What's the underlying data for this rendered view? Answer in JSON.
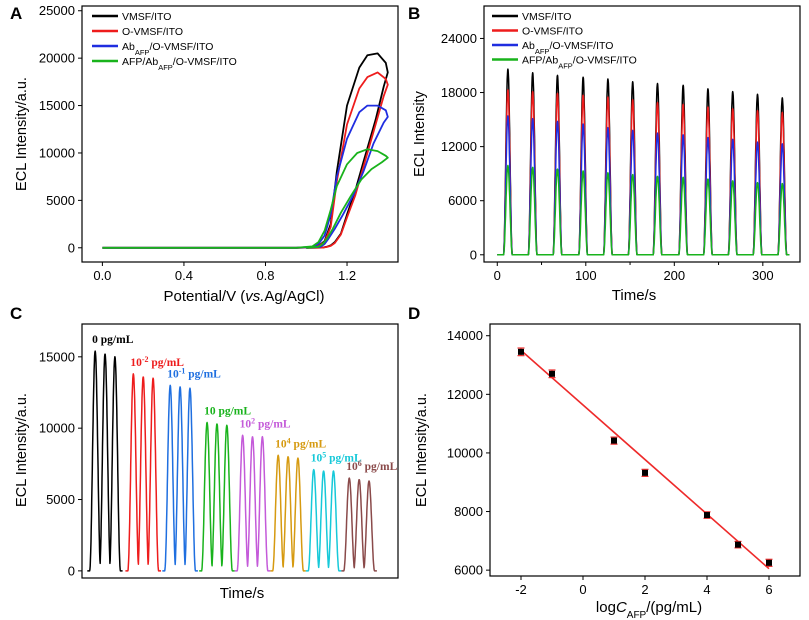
{
  "colors": {
    "black": "#000000",
    "red": "#ee1c1c",
    "blue": "#1f2de0",
    "green": "#19b31c",
    "fit": "#ee2a2a"
  },
  "chart_data": [
    {
      "panel": "A",
      "type": "line",
      "xlabel": "Potential/V (vs.Ag/AgCl)",
      "xlabel_parts": [
        "Potential/V (",
        "vs.",
        "Ag/AgCl)"
      ],
      "ylabel": "ECL Intensity/a.u.",
      "xlim": [
        -0.1,
        1.45
      ],
      "ylim": [
        -1500,
        25500
      ],
      "xticks": [
        0.0,
        0.4,
        0.8,
        1.2
      ],
      "xtick_labels": [
        "0.0",
        "0.4",
        "0.8",
        "1.2"
      ],
      "yticks": [
        0,
        5000,
        10000,
        15000,
        20000,
        25000
      ],
      "ytick_labels": [
        "0",
        "5000",
        "10000",
        "15000",
        "20000",
        "25000"
      ],
      "legend_position": "top-left",
      "series": [
        {
          "name": "VMSF/ITO",
          "legend": [
            "VMSF/ITO"
          ],
          "color": "#000000",
          "x": [
            0.0,
            0.95,
            1.03,
            1.06,
            1.09,
            1.12,
            1.15,
            1.2,
            1.26,
            1.3,
            1.35,
            1.39,
            1.4,
            1.38,
            1.34,
            1.28,
            1.24,
            1.2,
            1.17,
            1.14,
            1.12,
            1.1,
            1.08,
            1.0
          ],
          "y": [
            0,
            0,
            50,
            200,
            700,
            2500,
            8000,
            15000,
            19000,
            20300,
            20500,
            19500,
            18500,
            17000,
            13500,
            9000,
            6000,
            3500,
            1500,
            600,
            250,
            100,
            20,
            0
          ]
        },
        {
          "name": "O-VMSF/ITO",
          "legend": [
            "O-VMSF/ITO"
          ],
          "color": "#ee1c1c",
          "x": [
            0.0,
            0.95,
            1.03,
            1.06,
            1.09,
            1.12,
            1.15,
            1.2,
            1.26,
            1.3,
            1.35,
            1.39,
            1.4,
            1.38,
            1.34,
            1.28,
            1.24,
            1.2,
            1.17,
            1.14,
            1.12,
            1.1,
            1.08,
            1.0
          ],
          "y": [
            0,
            0,
            40,
            180,
            600,
            2200,
            7000,
            13000,
            16800,
            18000,
            18500,
            17800,
            17200,
            16000,
            13000,
            8500,
            5500,
            3200,
            1400,
            500,
            200,
            80,
            20,
            0
          ]
        },
        {
          "name": "AbAFP/O-VMSF/ITO",
          "legend": [
            "Ab",
            "AFP",
            "/O-VMSF/ITO"
          ],
          "color": "#1f2de0",
          "x": [
            0.0,
            0.95,
            1.03,
            1.06,
            1.09,
            1.12,
            1.15,
            1.2,
            1.26,
            1.3,
            1.35,
            1.39,
            1.4,
            1.38,
            1.33,
            1.28,
            1.23,
            1.18,
            1.14,
            1.11,
            1.09,
            1.07,
            1.0
          ],
          "y": [
            0,
            0,
            100,
            400,
            1300,
            3500,
            7500,
            11500,
            14300,
            15000,
            15000,
            14500,
            13800,
            13200,
            11000,
            8000,
            5500,
            3500,
            2000,
            1000,
            400,
            100,
            0
          ]
        },
        {
          "name": "AFP/AbAFP/O-VMSF/ITO",
          "legend": [
            "AFP/Ab",
            "AFP",
            "/O-VMSF/ITO"
          ],
          "color": "#19b31c",
          "x": [
            0.0,
            0.95,
            1.03,
            1.06,
            1.09,
            1.12,
            1.15,
            1.2,
            1.25,
            1.3,
            1.35,
            1.39,
            1.4,
            1.37,
            1.32,
            1.27,
            1.22,
            1.17,
            1.13,
            1.1,
            1.08,
            1.06,
            1.0
          ],
          "y": [
            0,
            0,
            150,
            600,
            1800,
            4000,
            6500,
            8800,
            10000,
            10400,
            10200,
            9700,
            9500,
            9000,
            8300,
            7200,
            5500,
            3700,
            2000,
            900,
            400,
            100,
            0
          ]
        }
      ]
    },
    {
      "panel": "B",
      "type": "line",
      "xlabel": "Time/s",
      "ylabel": "ECL Intensity",
      "xlim": [
        -15,
        342
      ],
      "ylim": [
        -800,
        27600
      ],
      "xticks": [
        0,
        100,
        200,
        300
      ],
      "xtick_labels": [
        "0",
        "100",
        "200",
        "300"
      ],
      "minor_xticks": [
        50,
        150,
        250
      ],
      "yticks": [
        0,
        6000,
        12000,
        18000,
        24000
      ],
      "ytick_labels": [
        "0",
        "6000",
        "12000",
        "18000",
        "24000"
      ],
      "legend_position": "top-left",
      "pulse_times": [
        12,
        40,
        68,
        97,
        125,
        153,
        181,
        210,
        238,
        266,
        294,
        322
      ],
      "pulse_width": 5,
      "series": [
        {
          "name": "VMSF/ITO",
          "legend": [
            "VMSF/ITO"
          ],
          "color": "#000000",
          "peaks": [
            20600,
            20200,
            19900,
            19700,
            19500,
            19200,
            19000,
            18800,
            18400,
            18100,
            17800,
            17400
          ]
        },
        {
          "name": "O-VMSF/ITO",
          "legend": [
            "O-VMSF/ITO"
          ],
          "color": "#ee1c1c",
          "peaks": [
            18300,
            18100,
            17900,
            17700,
            17500,
            17200,
            16900,
            16700,
            16400,
            16200,
            16000,
            15800
          ]
        },
        {
          "name": "AbAFP/O-VMSF/ITO",
          "legend": [
            "Ab",
            "AFP",
            "/O-VMSF/ITO"
          ],
          "color": "#1f2de0",
          "peaks": [
            15400,
            15100,
            14800,
            14500,
            14100,
            13800,
            13500,
            13300,
            13000,
            12800,
            12500,
            12300
          ]
        },
        {
          "name": "AFP/AbAFP/O-VMSF/ITO",
          "legend": [
            "AFP/Ab",
            "AFP",
            "/O-VMSF/ITO"
          ],
          "color": "#19b31c",
          "peaks": [
            9900,
            9700,
            9500,
            9300,
            9100,
            8900,
            8700,
            8600,
            8400,
            8200,
            8000,
            7900
          ]
        }
      ]
    },
    {
      "panel": "C",
      "type": "line",
      "xlabel": "Time/s",
      "ylabel": "ECL Intensity/a.u.",
      "xlim": [
        0,
        24
      ],
      "ylim": [
        -500,
        17300
      ],
      "yticks": [
        0,
        5000,
        10000,
        15000
      ],
      "ytick_labels": [
        "0",
        "5000",
        "10000",
        "15000"
      ],
      "pulse_width": 0.42,
      "groups": [
        {
          "label": [
            "0 pg/mL"
          ],
          "color": "#000000",
          "times": [
            1.0,
            1.75,
            2.5
          ],
          "peaks": [
            15400,
            15200,
            15000
          ]
        },
        {
          "label": [
            "10",
            "-2",
            " pg/mL"
          ],
          "color": "#ee1c1c",
          "times": [
            3.9,
            4.65,
            5.4
          ],
          "peaks": [
            13800,
            13600,
            13500
          ]
        },
        {
          "label": [
            "10",
            "-1",
            " pg/mL"
          ],
          "color": "#1f6fe0",
          "times": [
            6.7,
            7.45,
            8.2
          ],
          "peaks": [
            13000,
            12900,
            12800
          ]
        },
        {
          "label": [
            "10 pg/mL"
          ],
          "color": "#19b31c",
          "times": [
            9.5,
            10.25,
            11.0
          ],
          "peaks": [
            10400,
            10300,
            10200
          ]
        },
        {
          "label": [
            "10",
            "2",
            " pg/mL"
          ],
          "color": "#c45ad9",
          "times": [
            12.2,
            12.95,
            13.7
          ],
          "peaks": [
            9500,
            9400,
            9400
          ]
        },
        {
          "label": [
            "10",
            "4",
            " pg/mL"
          ],
          "color": "#d69a10",
          "times": [
            14.9,
            15.65,
            16.4
          ],
          "peaks": [
            8100,
            8000,
            7900
          ]
        },
        {
          "label": [
            "10",
            "5",
            " pg/mL"
          ],
          "color": "#17c9d9",
          "times": [
            17.6,
            18.35,
            19.1
          ],
          "peaks": [
            7100,
            7000,
            7000
          ]
        },
        {
          "label": [
            "10",
            "6",
            " pg/mL"
          ],
          "color": "#8a4a4a",
          "times": [
            20.3,
            21.05,
            21.8
          ],
          "peaks": [
            6500,
            6400,
            6300
          ]
        }
      ]
    },
    {
      "panel": "D",
      "type": "scatter",
      "xlabel": "logCAFP/(pg/mL)",
      "xlabel_parts": [
        "log",
        "C",
        "AFP",
        "/(pg/mL)"
      ],
      "ylabel": "ECL Intensity/a.u.",
      "xlim": [
        -3,
        7
      ],
      "ylim": [
        5800,
        14400
      ],
      "xticks": [
        -2,
        0,
        2,
        4,
        6
      ],
      "xtick_labels": [
        "-2",
        "0",
        "2",
        "4",
        "6"
      ],
      "yticks": [
        6000,
        8000,
        10000,
        12000,
        14000
      ],
      "ytick_labels": [
        "6000",
        "8000",
        "10000",
        "12000",
        "14000"
      ],
      "points": [
        {
          "x": -2,
          "y": 13450,
          "err": 130
        },
        {
          "x": -1,
          "y": 12700,
          "err": 130
        },
        {
          "x": 1,
          "y": 10420,
          "err": 120
        },
        {
          "x": 2,
          "y": 9320,
          "err": 120
        },
        {
          "x": 4,
          "y": 7880,
          "err": 110
        },
        {
          "x": 5,
          "y": 6870,
          "err": 110
        },
        {
          "x": 6,
          "y": 6250,
          "err": 120
        }
      ],
      "fit": {
        "x": [
          -2,
          6
        ],
        "y": [
          13500,
          6050
        ]
      }
    }
  ],
  "panel_labels": [
    "A",
    "B",
    "C",
    "D"
  ]
}
